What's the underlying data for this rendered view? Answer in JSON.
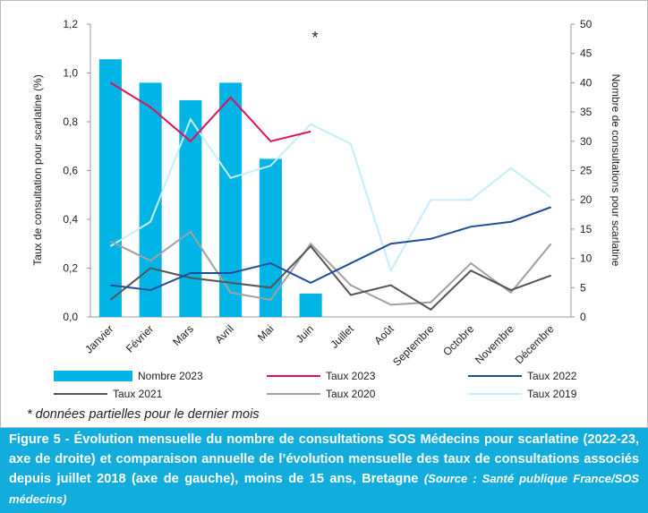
{
  "chart_data": {
    "type": "bar_line",
    "categories": [
      "Janvier",
      "Février",
      "Mars",
      "Avril",
      "Mai",
      "Juin",
      "Juillet",
      "Août",
      "Septembre",
      "Octobre",
      "Novembre",
      "Décembre"
    ],
    "series": [
      {
        "name": "Nombre 2023",
        "type": "bar",
        "axis": "y2",
        "color": "#00b4e6",
        "values": [
          44,
          40,
          37,
          40,
          27,
          4,
          null,
          null,
          null,
          null,
          null,
          null
        ]
      },
      {
        "name": "Taux 2023",
        "type": "line",
        "color": "#e0105a",
        "values": [
          0.96,
          0.86,
          0.72,
          0.9,
          0.72,
          0.76,
          null,
          null,
          null,
          null,
          null,
          null
        ]
      },
      {
        "name": "Taux 2022",
        "type": "line",
        "color": "#1f4e99",
        "values": [
          0.13,
          0.11,
          0.18,
          0.18,
          0.22,
          0.14,
          0.22,
          0.3,
          0.32,
          0.37,
          0.39,
          0.45
        ]
      },
      {
        "name": "Taux 2021",
        "type": "line",
        "color": "#555555",
        "values": [
          0.07,
          0.2,
          0.16,
          0.14,
          0.12,
          0.29,
          0.09,
          0.13,
          0.03,
          0.19,
          0.11,
          0.17
        ]
      },
      {
        "name": "Taux 2020",
        "type": "line",
        "color": "#a0a0a0",
        "values": [
          0.31,
          0.23,
          0.35,
          0.1,
          0.07,
          0.3,
          0.13,
          0.05,
          0.06,
          0.22,
          0.1,
          0.3
        ]
      },
      {
        "name": "Taux 2019",
        "type": "line",
        "color": "#c5eefc",
        "values": [
          0.29,
          0.39,
          0.81,
          0.57,
          0.62,
          0.79,
          0.71,
          0.19,
          0.48,
          0.48,
          0.61,
          0.49
        ]
      }
    ],
    "ylabel": "Taux de consultation pour scarlatine (%)",
    "y2label": "Nombre de consultations pour scarlatine",
    "ylim": [
      0,
      1.2
    ],
    "yticks": [
      {
        "value": 0,
        "label": "0,0"
      },
      {
        "value": 0.2,
        "label": "0,2"
      },
      {
        "value": 0.4,
        "label": "0,4"
      },
      {
        "value": 0.6,
        "label": "0,6"
      },
      {
        "value": 0.8,
        "label": "0,8"
      },
      {
        "value": 1.0,
        "label": "1,0"
      },
      {
        "value": 1.2,
        "label": "1,2"
      }
    ],
    "y2lim": [
      0,
      50
    ],
    "y2ticks": [
      0,
      5,
      10,
      15,
      20,
      25,
      30,
      35,
      40,
      45,
      50
    ],
    "annotation": "*",
    "note": "* données partielles pour le dernier mois",
    "caption": "Figure 5 - Évolution mensuelle du nombre de consultations SOS Médecins pour scarlatine (2022-23, axe de droite) et comparaison annuelle de l’évolution mensuelle des taux de consultations associés depuis juillet 2018 (axe de gauche), moins de 15 ans, Bretagne",
    "source": "(Source : Santé publique France/SOS médecins)"
  }
}
